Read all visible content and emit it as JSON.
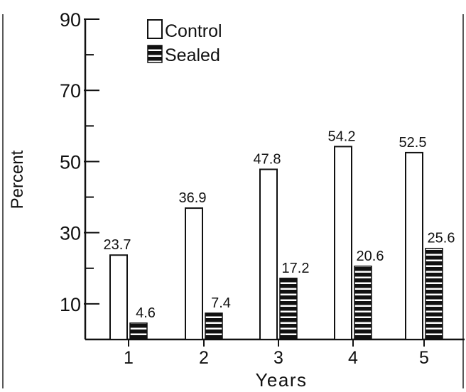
{
  "chart_data": {
    "type": "bar",
    "xlabel": "Years",
    "ylabel": "Percent",
    "categories": [
      "1",
      "2",
      "3",
      "4",
      "5"
    ],
    "series": [
      {
        "name": "Control",
        "values": [
          23.7,
          36.9,
          47.8,
          54.2,
          52.5
        ],
        "style": "open",
        "color": "#ffffff"
      },
      {
        "name": "Sealed",
        "values": [
          4.6,
          7.4,
          17.2,
          20.6,
          25.6
        ],
        "style": "striped",
        "color": "#111111"
      }
    ],
    "data_labels": {
      "Control": [
        "23.7",
        "36.9",
        "47.8",
        "54.2",
        "52.5"
      ],
      "Sealed": [
        "4.6",
        "7.4",
        "17.2",
        "20.6",
        "25.6"
      ]
    },
    "ylim": [
      0,
      90
    ],
    "yticks_labeled": [
      10,
      30,
      50,
      70,
      90
    ],
    "yticks_minor": [
      20,
      40,
      60,
      80
    ],
    "grid": false,
    "legend_position": "top-left"
  }
}
